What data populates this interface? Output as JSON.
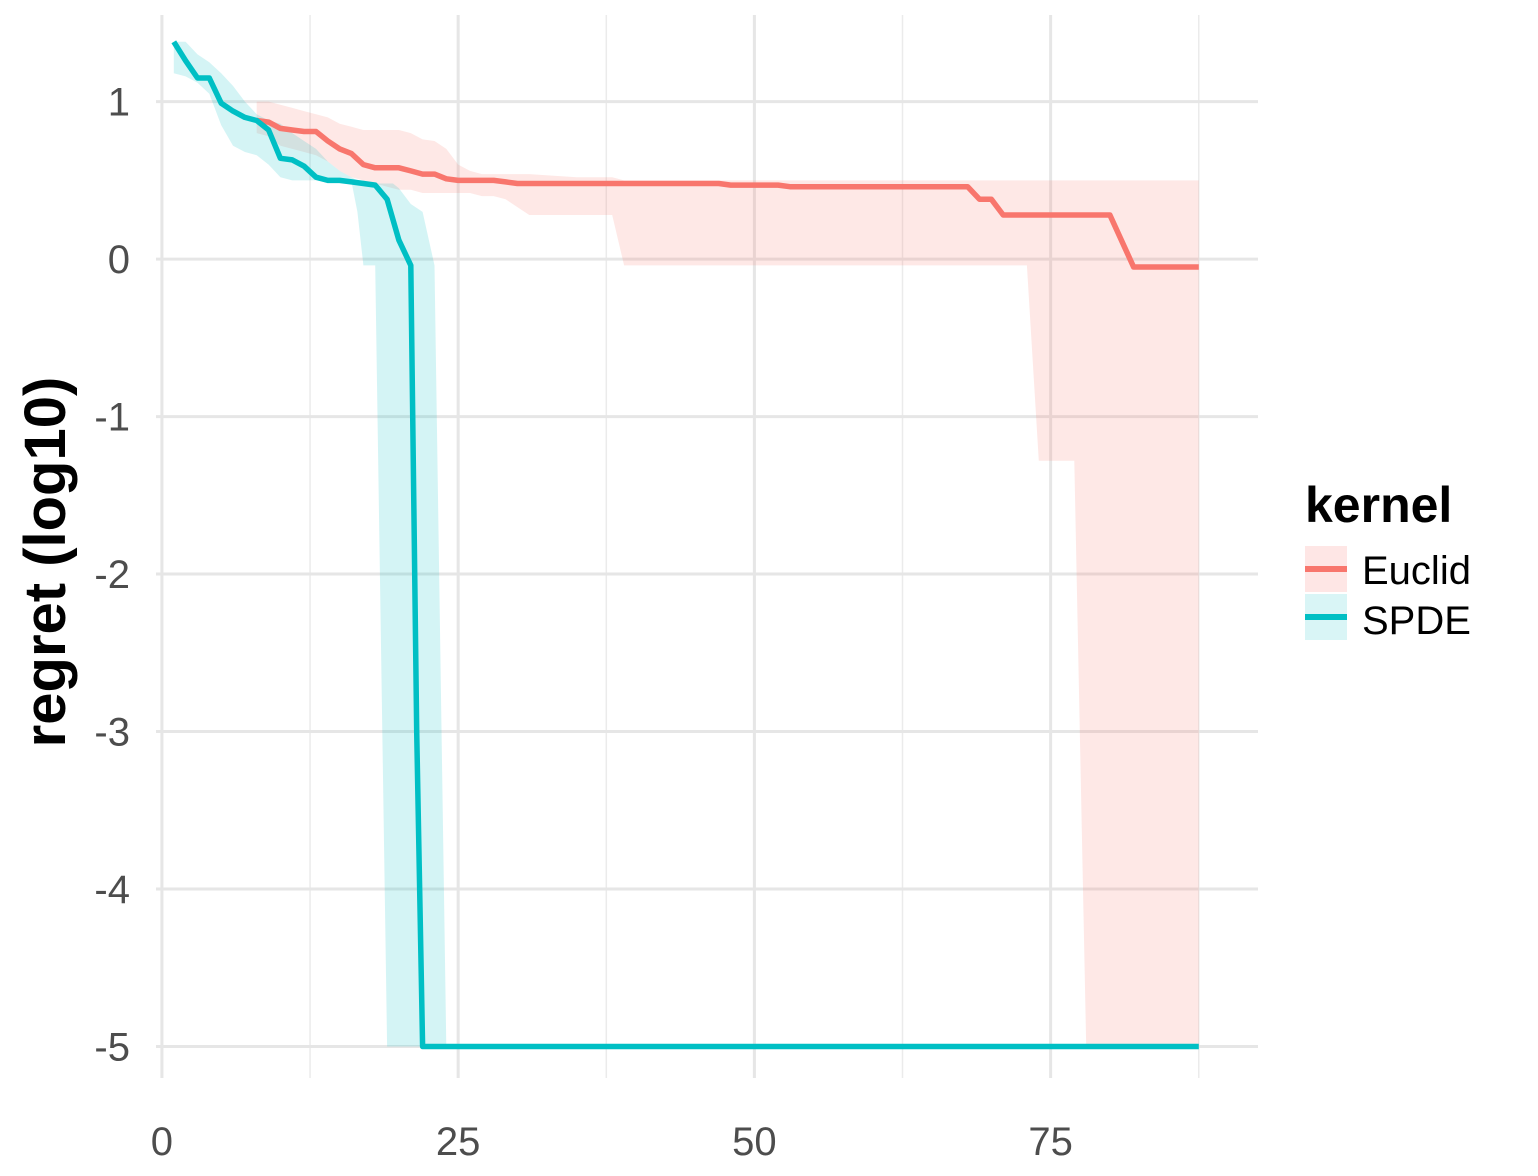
{
  "chart_data": {
    "type": "line",
    "title": "",
    "xlabel": "",
    "ylabel": "regret (log10)",
    "xlim": [
      -0.5,
      92.5
    ],
    "ylim": [
      -5.2,
      1.55
    ],
    "x_ticks": [
      0,
      25,
      50,
      75
    ],
    "x_tick_labels": [
      "0",
      "25",
      "50",
      "75"
    ],
    "x_minor_ticks": [
      12.5,
      37.5,
      62.5,
      87.5
    ],
    "y_ticks": [
      1,
      0,
      -1,
      -2,
      -3,
      -4,
      -5
    ],
    "y_tick_labels": [
      "1",
      "0",
      "-1",
      "-2",
      "-3",
      "-4",
      "-5"
    ],
    "grid": true,
    "legend": {
      "title": "kernel",
      "position": "right"
    },
    "series": [
      {
        "name": "Euclid",
        "color": "#F8766D",
        "line": [
          [
            8,
            0.88
          ],
          [
            9,
            0.87
          ],
          [
            10,
            0.83
          ],
          [
            11,
            0.82
          ],
          [
            12,
            0.81
          ],
          [
            13,
            0.81
          ],
          [
            14,
            0.75
          ],
          [
            15,
            0.7
          ],
          [
            16,
            0.67
          ],
          [
            17,
            0.6
          ],
          [
            18,
            0.58
          ],
          [
            19,
            0.58
          ],
          [
            20,
            0.58
          ],
          [
            21,
            0.56
          ],
          [
            22,
            0.54
          ],
          [
            23,
            0.54
          ],
          [
            24,
            0.51
          ],
          [
            25,
            0.5
          ],
          [
            26,
            0.5
          ],
          [
            27,
            0.5
          ],
          [
            28,
            0.5
          ],
          [
            29,
            0.49
          ],
          [
            30,
            0.48
          ],
          [
            35,
            0.48
          ],
          [
            40,
            0.48
          ],
          [
            47,
            0.48
          ],
          [
            48,
            0.47
          ],
          [
            52,
            0.47
          ],
          [
            53,
            0.46
          ],
          [
            60,
            0.46
          ],
          [
            68,
            0.46
          ],
          [
            69,
            0.38
          ],
          [
            70,
            0.38
          ],
          [
            71,
            0.28
          ],
          [
            74,
            0.28
          ],
          [
            79,
            0.28
          ],
          [
            80,
            0.28
          ],
          [
            82,
            -0.05
          ],
          [
            87.5,
            -0.05
          ]
        ],
        "band_x": [
          8,
          9,
          10,
          11,
          12,
          13,
          14,
          15,
          16,
          17,
          18,
          19,
          20,
          21,
          22,
          23,
          24,
          25,
          26,
          27,
          28,
          29,
          30,
          31,
          35,
          38,
          39,
          40,
          50,
          60,
          70,
          73,
          74,
          77,
          78,
          87.5
        ],
        "band_upper": [
          1.0,
          1.0,
          0.98,
          0.96,
          0.94,
          0.92,
          0.9,
          0.86,
          0.84,
          0.82,
          0.82,
          0.82,
          0.82,
          0.8,
          0.76,
          0.75,
          0.7,
          0.6,
          0.56,
          0.54,
          0.54,
          0.54,
          0.54,
          0.54,
          0.52,
          0.52,
          0.5,
          0.5,
          0.5,
          0.5,
          0.5,
          0.5,
          0.5,
          0.5,
          0.5,
          0.5
        ],
        "band_lower": [
          0.8,
          0.78,
          0.72,
          0.7,
          0.68,
          0.66,
          0.62,
          0.56,
          0.52,
          0.5,
          0.48,
          0.46,
          0.44,
          0.44,
          0.42,
          0.42,
          0.42,
          0.42,
          0.42,
          0.4,
          0.4,
          0.38,
          0.33,
          0.28,
          0.28,
          0.28,
          -0.04,
          -0.04,
          -0.04,
          -0.04,
          -0.04,
          -0.04,
          -1.28,
          -1.28,
          -5.0,
          -5.0
        ]
      },
      {
        "name": "SPDE",
        "color": "#00BFC4",
        "line": [
          [
            1,
            1.38
          ],
          [
            2,
            1.26
          ],
          [
            3,
            1.15
          ],
          [
            4,
            1.15
          ],
          [
            5,
            0.99
          ],
          [
            6,
            0.94
          ],
          [
            7,
            0.9
          ],
          [
            8,
            0.88
          ],
          [
            9,
            0.82
          ],
          [
            10,
            0.64
          ],
          [
            11,
            0.63
          ],
          [
            12,
            0.59
          ],
          [
            13,
            0.52
          ],
          [
            14,
            0.5
          ],
          [
            15,
            0.5
          ],
          [
            16,
            0.49
          ],
          [
            17,
            0.48
          ],
          [
            18,
            0.47
          ],
          [
            19,
            0.38
          ],
          [
            20,
            0.12
          ],
          [
            21,
            -0.04
          ],
          [
            21.5,
            -3.0
          ],
          [
            22,
            -5.0
          ],
          [
            87.5,
            -5.0
          ]
        ],
        "band_x": [
          1,
          2,
          3,
          4,
          5,
          6,
          7,
          8,
          9,
          10,
          11,
          12,
          13,
          14,
          15,
          16,
          16.5,
          17,
          18,
          19,
          19.5,
          20,
          21,
          22,
          23,
          24,
          87.5
        ],
        "band_upper": [
          1.38,
          1.38,
          1.3,
          1.25,
          1.18,
          1.1,
          1.0,
          0.92,
          0.88,
          0.86,
          0.8,
          0.75,
          0.7,
          0.62,
          0.56,
          0.52,
          0.5,
          0.5,
          0.48,
          0.48,
          0.48,
          0.45,
          0.35,
          0.3,
          -0.04,
          -5.0,
          -5.0
        ],
        "band_lower": [
          1.18,
          1.16,
          1.12,
          1.05,
          0.85,
          0.72,
          0.68,
          0.66,
          0.6,
          0.52,
          0.5,
          0.5,
          0.5,
          0.49,
          0.49,
          0.49,
          0.3,
          -0.04,
          -0.04,
          -5.0,
          -5.0,
          -5.0,
          -5.0,
          -5.0,
          -5.0,
          -5.0,
          -5.0
        ]
      }
    ]
  }
}
